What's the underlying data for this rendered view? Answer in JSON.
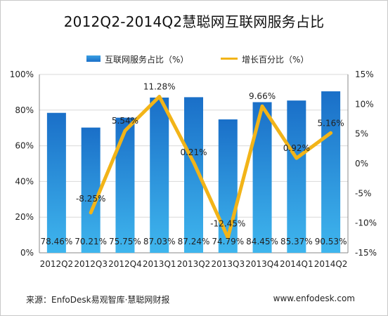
{
  "title": "2012Q2-2014Q2慧聪网互联网服务占比",
  "legend": {
    "bar_label": "互联网服务占比（%）",
    "line_label": "增长百分比（%）"
  },
  "footer": {
    "source": "来源：EnfoDesk易观智库·慧聪网财报",
    "site": "www.enfodesk.com"
  },
  "colors": {
    "bar_top": "#1a6fc8",
    "bar_bottom": "#3fb6ee",
    "line": "#f2b418"
  },
  "chart_data": {
    "type": "bar",
    "categories": [
      "2012Q2",
      "2012Q3",
      "2012Q4",
      "2013Q1",
      "2013Q2",
      "2013Q3",
      "2013Q4",
      "2014Q1",
      "2014Q2"
    ],
    "series": [
      {
        "name": "互联网服务占比（%）",
        "type": "bar",
        "axis": "left",
        "values": [
          78.46,
          70.21,
          75.75,
          87.03,
          87.24,
          74.79,
          84.45,
          85.37,
          90.53
        ],
        "labels": [
          "78.46%",
          "70.21%",
          "75.75%",
          "87.03%",
          "87.24%",
          "74.79%",
          "84.45%",
          "85.37%",
          "90.53%"
        ]
      },
      {
        "name": "增长百分比（%）",
        "type": "line",
        "axis": "right",
        "values": [
          null,
          -8.25,
          5.54,
          11.28,
          0.21,
          -12.45,
          9.66,
          0.92,
          5.16
        ],
        "labels": [
          "",
          "-8.25%",
          "5.54%",
          "11.28%",
          "0.21%",
          "-12.45%",
          "9.66%",
          "0.92%",
          "5.16%"
        ]
      }
    ],
    "y_left": {
      "min": 0,
      "max": 100,
      "ticks": [
        0,
        20,
        40,
        60,
        80,
        100
      ],
      "tick_labels": [
        "0%",
        "20%",
        "40%",
        "60%",
        "80%",
        "100%"
      ]
    },
    "y_right": {
      "min": -15,
      "max": 15,
      "ticks": [
        -15,
        -10,
        -5,
        0,
        5,
        10,
        15
      ],
      "tick_labels": [
        "-15%",
        "-10%",
        "-5%",
        "0%",
        "5%",
        "10%",
        "15%"
      ]
    },
    "grid": true,
    "legend_position": "top"
  }
}
